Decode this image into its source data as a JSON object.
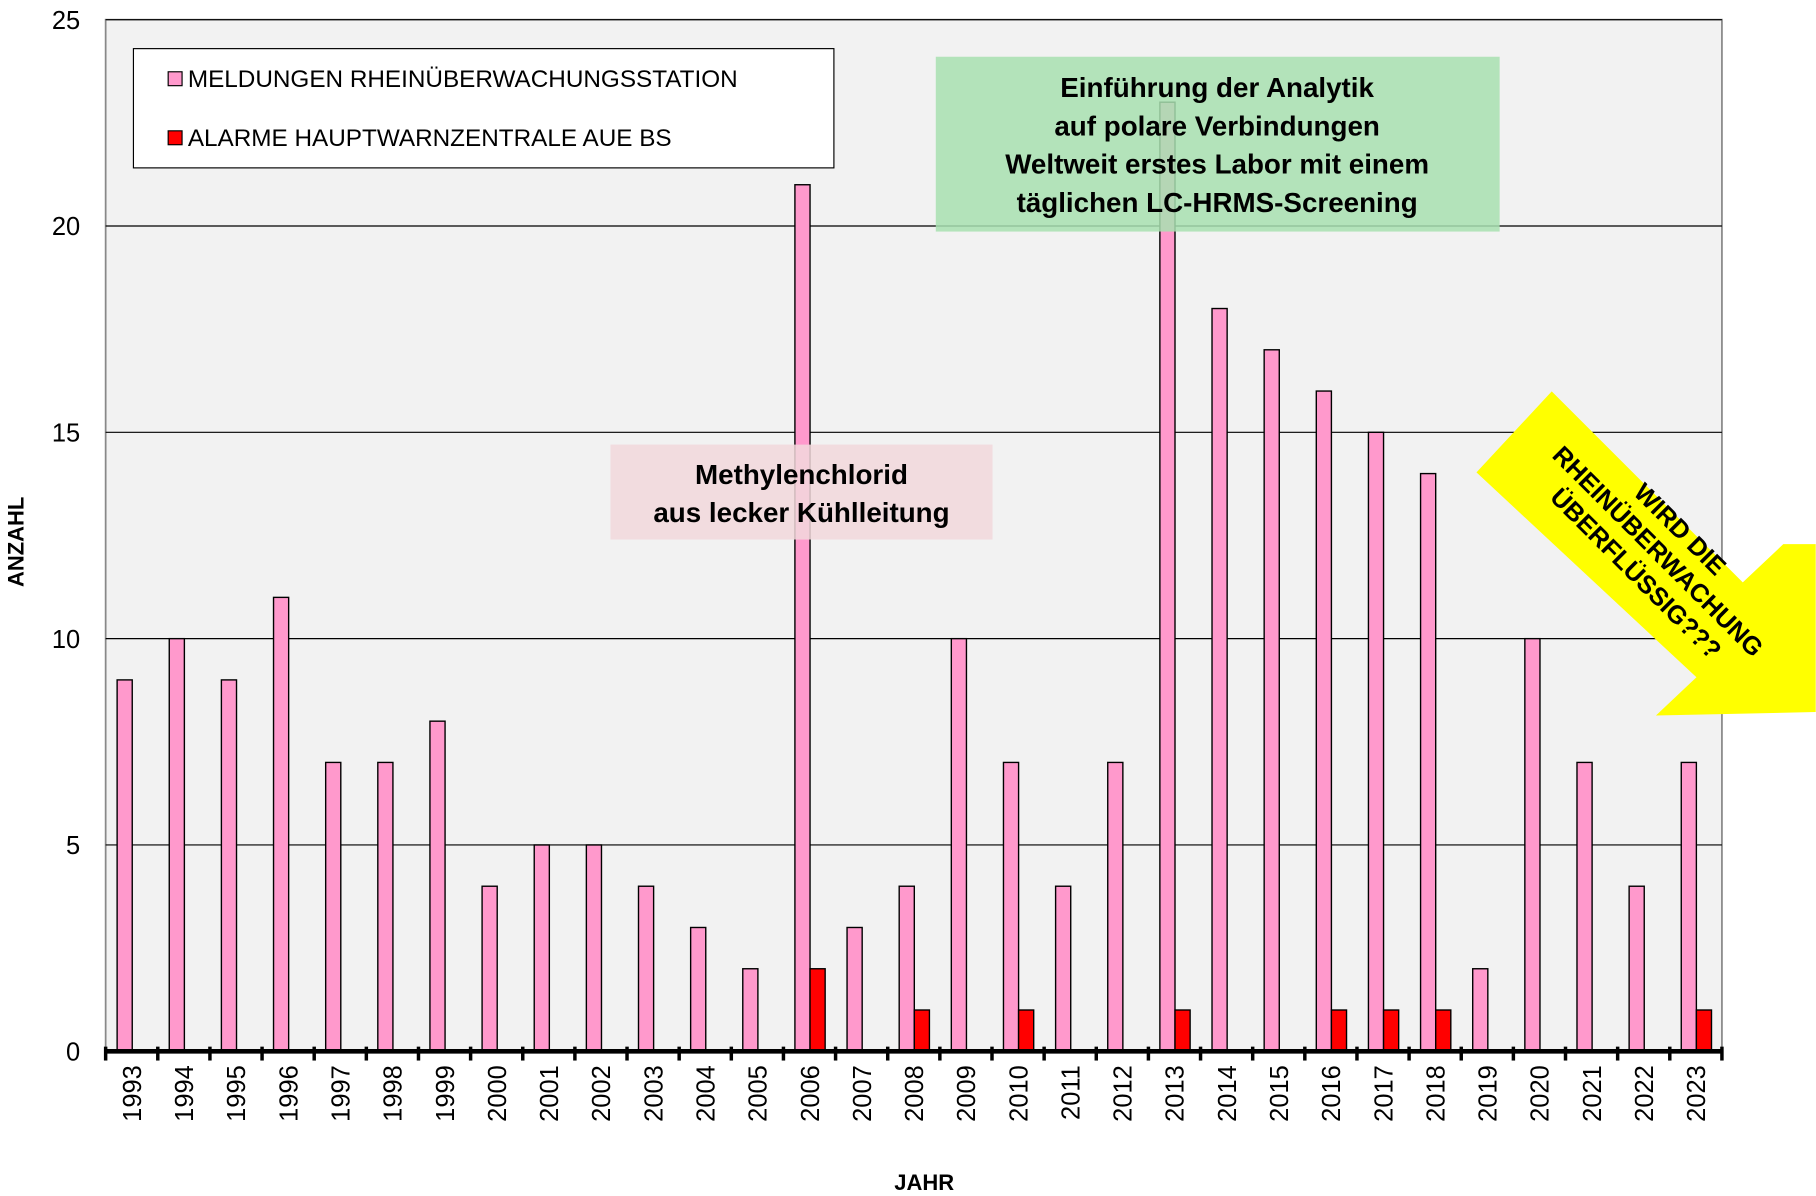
{
  "chart_data": {
    "type": "bar",
    "x_label": "JAHR",
    "y_label": "ANZAHL",
    "categories": [
      "1993",
      "1994",
      "1995",
      "1996",
      "1997",
      "1998",
      "1999",
      "2000",
      "2001",
      "2002",
      "2003",
      "2004",
      "2005",
      "2006",
      "2007",
      "2008",
      "2009",
      "2010",
      "2011",
      "2012",
      "2013",
      "2014",
      "2015",
      "2016",
      "2017",
      "2018",
      "2019",
      "2020",
      "2021",
      "2022",
      "2023"
    ],
    "series": [
      {
        "name": "MELDUNGEN RHEINÜBERWACHUNGSSTATION",
        "color": "#ff99cc",
        "values": [
          9,
          10,
          9,
          11,
          7,
          7,
          8,
          4,
          5,
          5,
          4,
          3,
          2,
          21,
          3,
          4,
          10,
          7,
          4,
          7,
          23,
          18,
          17,
          16,
          15,
          14,
          2,
          10,
          7,
          4,
          7
        ]
      },
      {
        "name": "ALARME HAUPTWARNZENTRALE AUE BS",
        "color": "#ff0000",
        "values": [
          0,
          0,
          0,
          0,
          0,
          0,
          0,
          0,
          0,
          0,
          0,
          0,
          0,
          2,
          0,
          1,
          0,
          1,
          0,
          0,
          1,
          0,
          0,
          1,
          1,
          1,
          0,
          0,
          0,
          0,
          1
        ]
      }
    ],
    "ylim": [
      0,
      25
    ],
    "yticks": [
      0,
      5,
      10,
      15,
      20,
      25
    ],
    "grid": true,
    "legend": "upper left",
    "annotations": [
      {
        "lines": [
          "Einführung der Analytik",
          "auf polare Verbindungen",
          "Weltweit erstes Labor mit einem",
          "täglichen LC-HRMS-Screening"
        ]
      },
      {
        "lines": [
          "Methylenchlorid",
          "aus lecker Kühlleitung"
        ]
      },
      {
        "lines": [
          "WIRD DIE",
          "RHEINÜBERWACHUNG",
          "ÜBERFLÜSSIG???"
        ]
      }
    ]
  }
}
